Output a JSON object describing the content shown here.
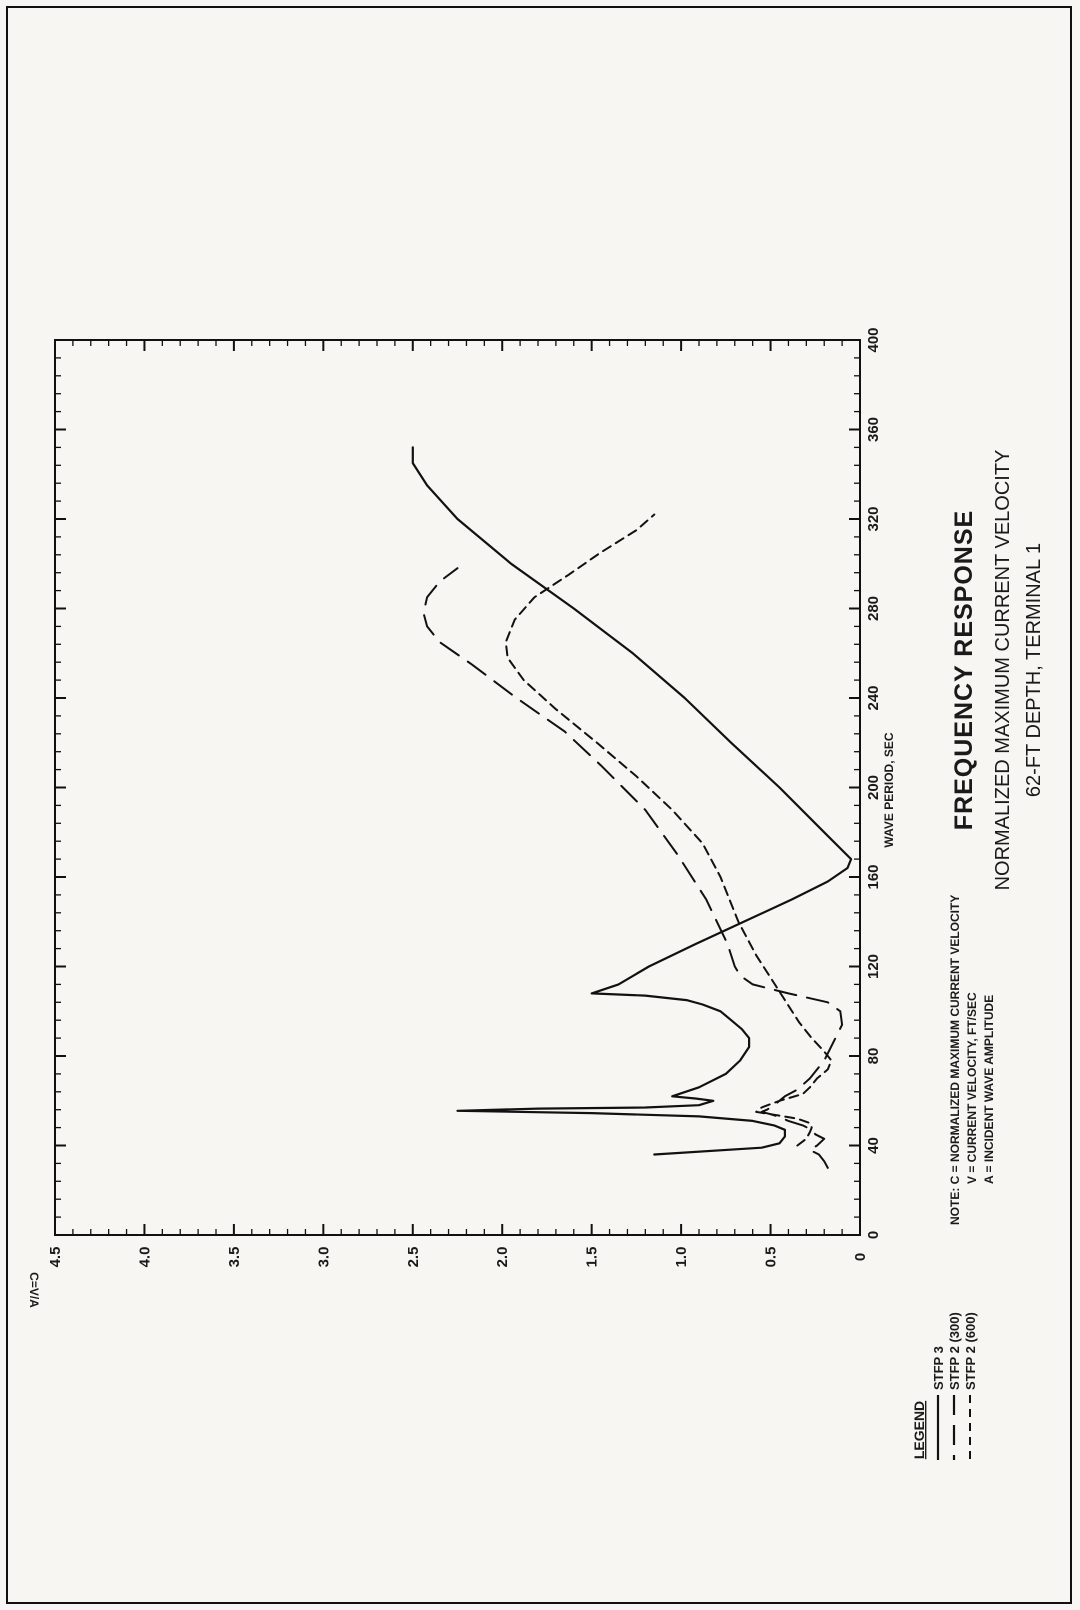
{
  "chart_data": {
    "type": "line",
    "title": "FREQUENCY RESPONSE",
    "subtitle": [
      "NORMALIZED MAXIMUM CURRENT VELOCITY",
      "62-FT DEPTH, TERMINAL 1"
    ],
    "xlabel": "WAVE PERIOD, SEC",
    "ylabel": "C=V/A",
    "xlim": [
      0,
      400
    ],
    "ylim": [
      0,
      4.5
    ],
    "x_ticks": [
      "0",
      "40",
      "80",
      "120",
      "160",
      "200",
      "240",
      "280",
      "320",
      "360",
      "400"
    ],
    "y_ticks": [
      "0",
      "0.5",
      "1.0",
      "1.5",
      "2.0",
      "2.5",
      "3.0",
      "3.5",
      "4.0",
      "4.5"
    ],
    "grid": false,
    "legend_title": "LEGEND",
    "note_lines": [
      "NOTE: C = NORMALIZED MAXIMUM CURRENT VELOCITY",
      "V = CURRENT VELOCITY, FT/SEC",
      "A = INCIDENT WAVE AMPLITUDE"
    ],
    "series": [
      {
        "name": "STFP 3",
        "style": "solid",
        "points": [
          [
            36,
            1.15
          ],
          [
            39,
            0.55
          ],
          [
            41,
            0.45
          ],
          [
            44,
            0.42
          ],
          [
            47,
            0.42
          ],
          [
            49,
            0.48
          ],
          [
            51,
            0.6
          ],
          [
            53,
            0.9
          ],
          [
            54.5,
            1.5
          ],
          [
            55.5,
            2.25
          ],
          [
            56.5,
            1.8
          ],
          [
            57,
            1.2
          ],
          [
            58,
            0.9
          ],
          [
            60,
            0.82
          ],
          [
            61,
            0.92
          ],
          [
            62,
            1.05
          ],
          [
            66,
            0.9
          ],
          [
            72,
            0.75
          ],
          [
            78,
            0.67
          ],
          [
            84,
            0.62
          ],
          [
            88,
            0.62
          ],
          [
            92,
            0.66
          ],
          [
            96,
            0.72
          ],
          [
            100,
            0.78
          ],
          [
            103,
            0.88
          ],
          [
            105,
            0.97
          ],
          [
            107,
            1.2
          ],
          [
            108,
            1.5
          ],
          [
            112,
            1.35
          ],
          [
            120,
            1.18
          ],
          [
            130,
            0.92
          ],
          [
            140,
            0.65
          ],
          [
            150,
            0.38
          ],
          [
            158,
            0.18
          ],
          [
            164,
            0.07
          ],
          [
            168,
            0.05
          ],
          [
            180,
            0.2
          ],
          [
            200,
            0.45
          ],
          [
            220,
            0.72
          ],
          [
            240,
            0.98
          ],
          [
            260,
            1.27
          ],
          [
            280,
            1.6
          ],
          [
            300,
            1.95
          ],
          [
            320,
            2.25
          ],
          [
            335,
            2.42
          ],
          [
            345,
            2.5
          ],
          [
            352,
            2.5
          ]
        ]
      },
      {
        "name": "STFP 2 (300)",
        "style": "long-dash",
        "points": [
          [
            30,
            0.18
          ],
          [
            33,
            0.2
          ],
          [
            36,
            0.23
          ],
          [
            38,
            0.28
          ],
          [
            40,
            0.24
          ],
          [
            43,
            0.2
          ],
          [
            45,
            0.25
          ],
          [
            47,
            0.27
          ],
          [
            49,
            0.32
          ],
          [
            51,
            0.4
          ],
          [
            53,
            0.46
          ],
          [
            54,
            0.5
          ],
          [
            55,
            0.55
          ],
          [
            56,
            0.52
          ],
          [
            58,
            0.48
          ],
          [
            60,
            0.45
          ],
          [
            62,
            0.42
          ],
          [
            65,
            0.35
          ],
          [
            70,
            0.28
          ],
          [
            78,
            0.2
          ],
          [
            86,
            0.15
          ],
          [
            94,
            0.1
          ],
          [
            100,
            0.11
          ],
          [
            104,
            0.18
          ],
          [
            108,
            0.4
          ],
          [
            112,
            0.6
          ],
          [
            116,
            0.67
          ],
          [
            120,
            0.7
          ],
          [
            130,
            0.74
          ],
          [
            150,
            0.86
          ],
          [
            170,
            1.02
          ],
          [
            190,
            1.2
          ],
          [
            210,
            1.45
          ],
          [
            225,
            1.65
          ],
          [
            240,
            1.92
          ],
          [
            255,
            2.17
          ],
          [
            265,
            2.35
          ],
          [
            272,
            2.42
          ],
          [
            278,
            2.44
          ],
          [
            285,
            2.42
          ],
          [
            292,
            2.35
          ],
          [
            298,
            2.25
          ]
        ]
      },
      {
        "name": "STFP 2 (600)",
        "style": "short-dash",
        "points": [
          [
            40,
            0.35
          ],
          [
            43,
            0.3
          ],
          [
            46,
            0.28
          ],
          [
            48,
            0.27
          ],
          [
            50,
            0.28
          ],
          [
            52,
            0.35
          ],
          [
            54,
            0.5
          ],
          [
            55,
            0.58
          ],
          [
            57,
            0.55
          ],
          [
            60,
            0.45
          ],
          [
            63,
            0.32
          ],
          [
            66,
            0.28
          ],
          [
            70,
            0.24
          ],
          [
            74,
            0.18
          ],
          [
            78,
            0.16
          ],
          [
            82,
            0.2
          ],
          [
            88,
            0.27
          ],
          [
            95,
            0.34
          ],
          [
            105,
            0.42
          ],
          [
            115,
            0.5
          ],
          [
            125,
            0.58
          ],
          [
            140,
            0.68
          ],
          [
            160,
            0.78
          ],
          [
            175,
            0.88
          ],
          [
            190,
            1.05
          ],
          [
            205,
            1.25
          ],
          [
            220,
            1.47
          ],
          [
            235,
            1.7
          ],
          [
            248,
            1.88
          ],
          [
            258,
            1.97
          ],
          [
            265,
            1.98
          ],
          [
            275,
            1.93
          ],
          [
            285,
            1.82
          ],
          [
            295,
            1.63
          ],
          [
            305,
            1.45
          ],
          [
            315,
            1.25
          ],
          [
            322,
            1.15
          ]
        ]
      }
    ]
  }
}
